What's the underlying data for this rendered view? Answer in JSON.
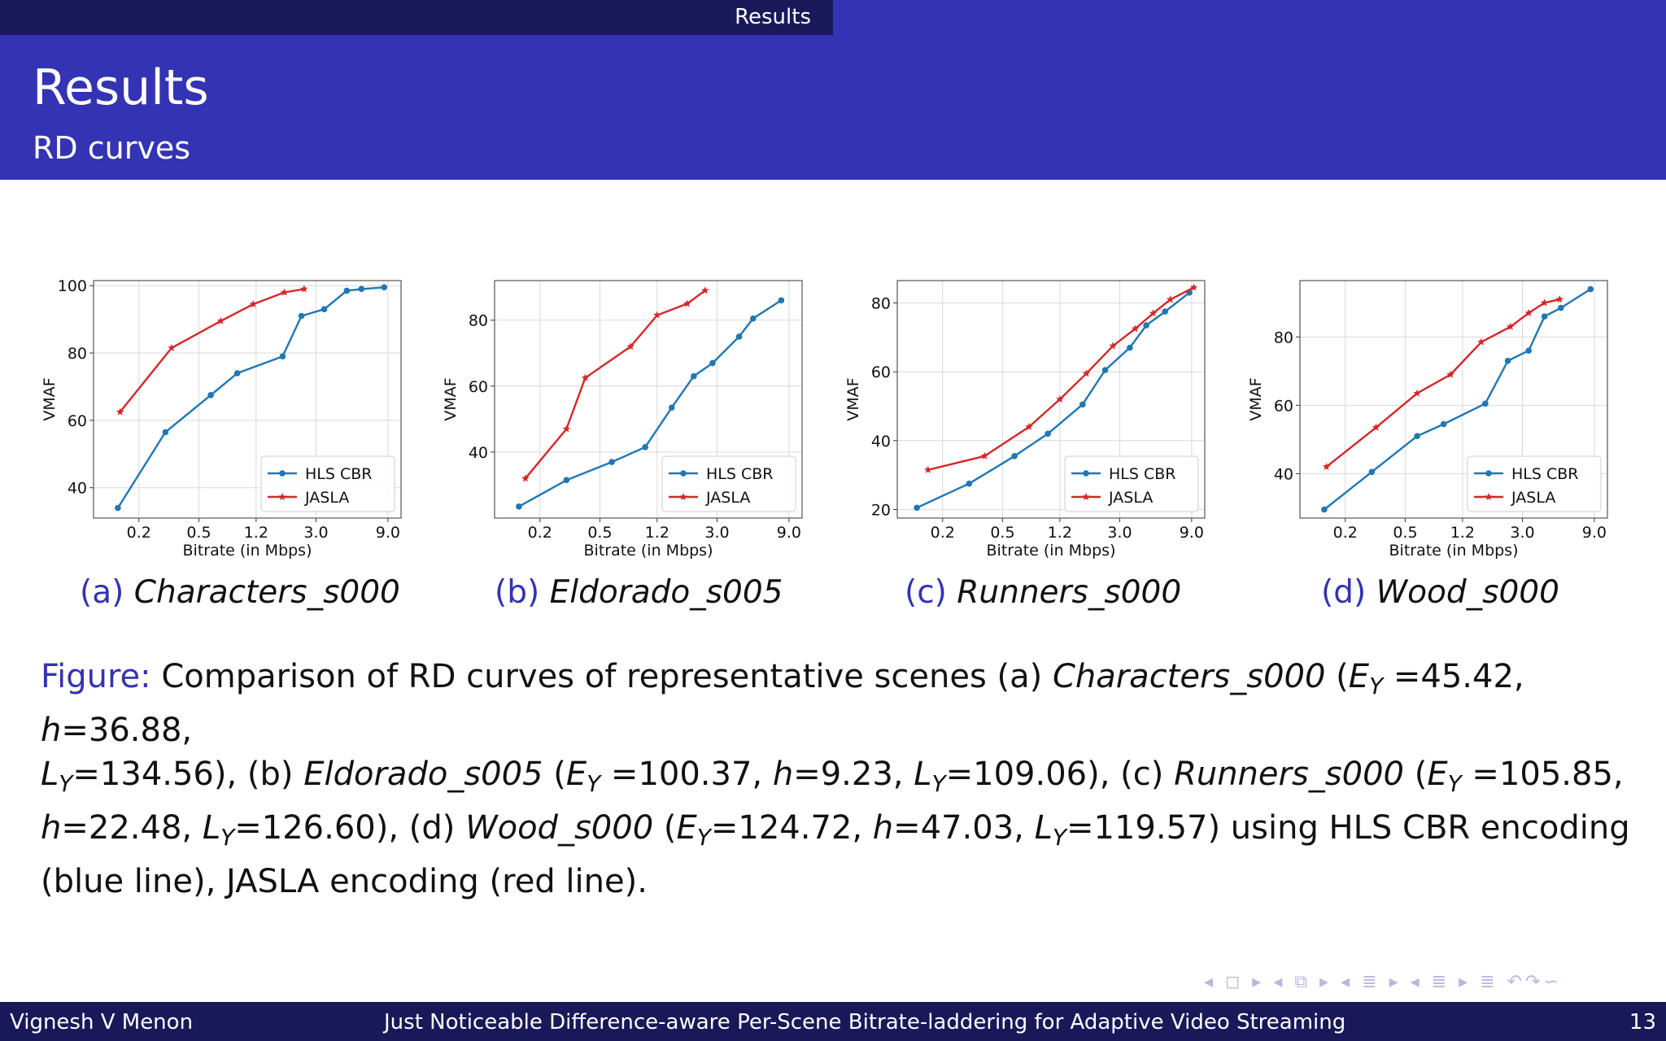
{
  "nav_section": "Results",
  "frame_title": "Results",
  "frame_subtitle": "RD curves",
  "colors": {
    "hls": "#1f77b4",
    "jasla": "#d62728",
    "accent": "#3333b3",
    "dark": "#191959"
  },
  "chart_data": [
    {
      "type": "line",
      "caption_label": "(a)",
      "caption_name": "Characters_s000",
      "xlabel": "Bitrate (in Mbps)",
      "ylabel": "VMAF",
      "xscale": "log",
      "xticks": [
        0.2,
        0.5,
        1.2,
        3.0,
        9.0
      ],
      "xtick_labels": [
        "0.2",
        "0.5",
        "1.2",
        "3.0",
        "9.0"
      ],
      "yticks": [
        40,
        60,
        80,
        100
      ],
      "xlim": [
        0.1,
        11
      ],
      "ylim": [
        31,
        101.5
      ],
      "legend": "lower-right",
      "series": [
        {
          "name": "HLS CBR",
          "marker": "dot",
          "x": [
            0.145,
            0.3,
            0.6,
            0.9,
            1.8,
            2.4,
            3.4,
            4.8,
            6,
            8.5
          ],
          "y": [
            34,
            56.5,
            67.5,
            74,
            79,
            91,
            93,
            98.5,
            99,
            99.5
          ]
        },
        {
          "name": "JASLA",
          "marker": "star",
          "x": [
            0.15,
            0.33,
            0.7,
            1.15,
            1.85,
            2.5
          ],
          "y": [
            62.5,
            81.5,
            89.5,
            94.5,
            98,
            99
          ]
        }
      ]
    },
    {
      "type": "line",
      "caption_label": "(b)",
      "caption_name": "Eldorado_s005",
      "xlabel": "Bitrate (in Mbps)",
      "ylabel": "VMAF",
      "xscale": "log",
      "xticks": [
        0.2,
        0.5,
        1.2,
        3.0,
        9.0
      ],
      "xtick_labels": [
        "0.2",
        "0.5",
        "1.2",
        "3.0",
        "9.0"
      ],
      "yticks": [
        40,
        60,
        80
      ],
      "xlim": [
        0.1,
        11
      ],
      "ylim": [
        20,
        92
      ],
      "legend": "lower-right",
      "series": [
        {
          "name": "HLS CBR",
          "marker": "dot",
          "x": [
            0.145,
            0.3,
            0.6,
            1.0,
            1.5,
            2.1,
            2.8,
            4.2,
            5.2,
            8
          ],
          "y": [
            23.5,
            31.5,
            37,
            41.5,
            53.5,
            63,
            67,
            75,
            80.5,
            86
          ]
        },
        {
          "name": "JASLA",
          "marker": "star",
          "x": [
            0.16,
            0.3,
            0.4,
            0.8,
            1.2,
            1.9,
            2.5
          ],
          "y": [
            32,
            47,
            62.5,
            72,
            81.5,
            85,
            89
          ]
        }
      ]
    },
    {
      "type": "line",
      "caption_label": "(c)",
      "caption_name": "Runners_s000",
      "xlabel": "Bitrate (in Mbps)",
      "ylabel": "VMAF",
      "xscale": "log",
      "xticks": [
        0.2,
        0.5,
        1.2,
        3.0,
        9.0
      ],
      "xtick_labels": [
        "0.2",
        "0.5",
        "1.2",
        "3.0",
        "9.0"
      ],
      "yticks": [
        20,
        40,
        60,
        80
      ],
      "xlim": [
        0.1,
        11
      ],
      "ylim": [
        17.5,
        86.5
      ],
      "legend": "lower-right",
      "series": [
        {
          "name": "HLS CBR",
          "marker": "dot",
          "x": [
            0.135,
            0.3,
            0.6,
            1.0,
            1.7,
            2.4,
            3.5,
            4.5,
            6,
            8.7
          ],
          "y": [
            20.5,
            27.5,
            35.5,
            42,
            50.5,
            60.5,
            67,
            73.5,
            77.5,
            83
          ]
        },
        {
          "name": "JASLA",
          "marker": "star",
          "x": [
            0.16,
            0.38,
            0.75,
            1.2,
            1.8,
            2.7,
            3.8,
            5,
            6.5,
            9.3
          ],
          "y": [
            31.5,
            35.5,
            44,
            52,
            59.5,
            67.5,
            72.5,
            77,
            81,
            84.5
          ]
        }
      ]
    },
    {
      "type": "line",
      "caption_label": "(d)",
      "caption_name": "Wood_s000",
      "xlabel": "Bitrate (in Mbps)",
      "ylabel": "VMAF",
      "xscale": "log",
      "xticks": [
        0.2,
        0.5,
        1.2,
        3.0,
        9.0
      ],
      "xtick_labels": [
        "0.2",
        "0.5",
        "1.2",
        "3.0",
        "9.0"
      ],
      "yticks": [
        40,
        60,
        80
      ],
      "xlim": [
        0.1,
        11
      ],
      "ylim": [
        27,
        96.5
      ],
      "legend": "lower-right",
      "series": [
        {
          "name": "HLS CBR",
          "marker": "dot",
          "x": [
            0.145,
            0.3,
            0.6,
            0.9,
            1.7,
            2.4,
            3.3,
            4.2,
            5.4,
            8.5
          ],
          "y": [
            29.5,
            40.5,
            51,
            54.5,
            60.5,
            73,
            76,
            86,
            88.5,
            94
          ]
        },
        {
          "name": "JASLA",
          "marker": "star",
          "x": [
            0.15,
            0.32,
            0.6,
            1.0,
            1.6,
            2.5,
            3.3,
            4.2,
            5.3
          ],
          "y": [
            42,
            53.5,
            63.5,
            69,
            78.5,
            83,
            87,
            90,
            91
          ]
        }
      ]
    }
  ],
  "figure_caption": {
    "prefix": "Figure:",
    "line1": [
      {
        "t": " Comparison of RD curves of representative scenes (a) "
      },
      {
        "t": "Characters_s000",
        "i": true
      },
      {
        "t": " ("
      },
      {
        "t": "E",
        "i": true
      },
      {
        "t": "Y",
        "i": true,
        "sub": true
      },
      {
        "t": " =45.42, "
      },
      {
        "t": "h",
        "i": true
      },
      {
        "t": "=36.88,"
      }
    ],
    "line2": [
      {
        "t": "L",
        "i": true
      },
      {
        "t": "Y",
        "i": true,
        "sub": true
      },
      {
        "t": "=134.56), (b) "
      },
      {
        "t": "Eldorado_s005",
        "i": true
      },
      {
        "t": " ("
      },
      {
        "t": "E",
        "i": true
      },
      {
        "t": "Y",
        "i": true,
        "sub": true
      },
      {
        "t": " =100.37, "
      },
      {
        "t": "h",
        "i": true
      },
      {
        "t": "=9.23, "
      },
      {
        "t": "L",
        "i": true
      },
      {
        "t": "Y",
        "i": true,
        "sub": true
      },
      {
        "t": "=109.06), (c) "
      },
      {
        "t": "Runners_s000",
        "i": true
      },
      {
        "t": " ("
      },
      {
        "t": "E",
        "i": true
      },
      {
        "t": "Y",
        "i": true,
        "sub": true
      },
      {
        "t": " =105.85,"
      }
    ],
    "line3": [
      {
        "t": "h",
        "i": true
      },
      {
        "t": "=22.48, "
      },
      {
        "t": "L",
        "i": true
      },
      {
        "t": "Y",
        "i": true,
        "sub": true
      },
      {
        "t": "=126.60), (d) "
      },
      {
        "t": "Wood_s000",
        "i": true
      },
      {
        "t": " ("
      },
      {
        "t": "E",
        "i": true
      },
      {
        "t": "Y",
        "i": true,
        "sub": true
      },
      {
        "t": "=124.72, "
      },
      {
        "t": "h",
        "i": true
      },
      {
        "t": "=47.03, "
      },
      {
        "t": "L",
        "i": true
      },
      {
        "t": "Y",
        "i": true,
        "sub": true
      },
      {
        "t": "=119.57) using HLS CBR encoding"
      }
    ],
    "line4": [
      {
        "t": "(blue line), JASLA encoding (red line)."
      }
    ]
  },
  "nav_symbols": "◂ ◻ ▸ ◂ ⧉ ▸ ◂ ≣ ▸ ◂ ≣ ▸ ≣ ↶↷∽",
  "footer": {
    "author": "Vignesh V Menon",
    "title": "Just Noticeable Difference-aware Per-Scene Bitrate-laddering for Adaptive Video Streaming",
    "page": "13"
  }
}
